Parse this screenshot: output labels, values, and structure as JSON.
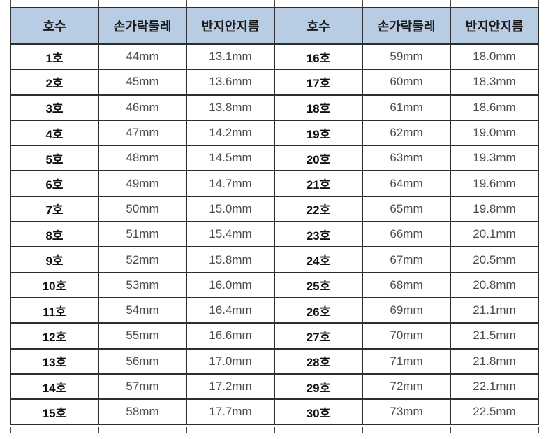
{
  "table": {
    "headers": [
      "호수",
      "손가락둘레",
      "반지안지름",
      "호수",
      "손가락둘레",
      "반지안지름"
    ],
    "rows": [
      {
        "size_l": "1호",
        "circ_l": "44mm",
        "dia_l": "13.1mm",
        "size_r": "16호",
        "circ_r": "59mm",
        "dia_r": "18.0mm"
      },
      {
        "size_l": "2호",
        "circ_l": "45mm",
        "dia_l": "13.6mm",
        "size_r": "17호",
        "circ_r": "60mm",
        "dia_r": "18.3mm"
      },
      {
        "size_l": "3호",
        "circ_l": "46mm",
        "dia_l": "13.8mm",
        "size_r": "18호",
        "circ_r": "61mm",
        "dia_r": "18.6mm"
      },
      {
        "size_l": "4호",
        "circ_l": "47mm",
        "dia_l": "14.2mm",
        "size_r": "19호",
        "circ_r": "62mm",
        "dia_r": "19.0mm"
      },
      {
        "size_l": "5호",
        "circ_l": "48mm",
        "dia_l": "14.5mm",
        "size_r": "20호",
        "circ_r": "63mm",
        "dia_r": "19.3mm"
      },
      {
        "size_l": "6호",
        "circ_l": "49mm",
        "dia_l": "14.7mm",
        "size_r": "21호",
        "circ_r": "64mm",
        "dia_r": "19.6mm"
      },
      {
        "size_l": "7호",
        "circ_l": "50mm",
        "dia_l": "15.0mm",
        "size_r": "22호",
        "circ_r": "65mm",
        "dia_r": "19.8mm"
      },
      {
        "size_l": "8호",
        "circ_l": "51mm",
        "dia_l": "15.4mm",
        "size_r": "23호",
        "circ_r": "66mm",
        "dia_r": "20.1mm"
      },
      {
        "size_l": "9호",
        "circ_l": "52mm",
        "dia_l": "15.8mm",
        "size_r": "24호",
        "circ_r": "67mm",
        "dia_r": "20.5mm"
      },
      {
        "size_l": "10호",
        "circ_l": "53mm",
        "dia_l": "16.0mm",
        "size_r": "25호",
        "circ_r": "68mm",
        "dia_r": "20.8mm"
      },
      {
        "size_l": "11호",
        "circ_l": "54mm",
        "dia_l": "16.4mm",
        "size_r": "26호",
        "circ_r": "69mm",
        "dia_r": "21.1mm"
      },
      {
        "size_l": "12호",
        "circ_l": "55mm",
        "dia_l": "16.6mm",
        "size_r": "27호",
        "circ_r": "70mm",
        "dia_r": "21.5mm"
      },
      {
        "size_l": "13호",
        "circ_l": "56mm",
        "dia_l": "17.0mm",
        "size_r": "28호",
        "circ_r": "71mm",
        "dia_r": "21.8mm"
      },
      {
        "size_l": "14호",
        "circ_l": "57mm",
        "dia_l": "17.2mm",
        "size_r": "29호",
        "circ_r": "72mm",
        "dia_r": "22.1mm"
      },
      {
        "size_l": "15호",
        "circ_l": "58mm",
        "dia_l": "17.7mm",
        "size_r": "30호",
        "circ_r": "73mm",
        "dia_r": "22.5mm"
      }
    ]
  },
  "colors": {
    "header_bg": "#b8cce4",
    "border": "#2e2e2e",
    "size_text": "#111111",
    "value_text": "#4d4d4d",
    "page_bg": "#ffffff"
  }
}
